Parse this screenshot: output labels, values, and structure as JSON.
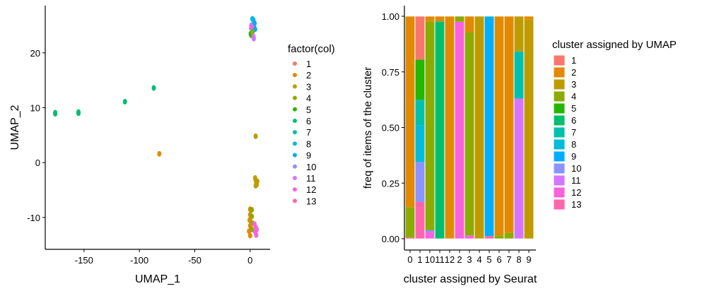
{
  "palette": {
    "1": "#F8766D",
    "2": "#E18A00",
    "3": "#BE9C00",
    "4": "#8CAB00",
    "5": "#24B700",
    "6": "#00BE70",
    "7": "#00C1AB",
    "8": "#00BBDA",
    "9": "#00ACFC",
    "10": "#8B93FF",
    "11": "#D575FE",
    "12": "#F962DD",
    "13": "#FF65AC"
  },
  "chart_data": [
    {
      "type": "scatter",
      "xlabel": "UMAP_1",
      "ylabel": "UMAP_2",
      "xlim": [
        -185,
        18
      ],
      "ylim": [
        -15.8,
        28.6
      ],
      "xticks": [
        -150,
        -100,
        -50,
        0
      ],
      "yticks": [
        -10,
        0,
        10,
        20
      ],
      "grid": false,
      "legend": {
        "title": "factor(col)",
        "position": "right",
        "entries": [
          "1",
          "2",
          "3",
          "4",
          "5",
          "6",
          "7",
          "8",
          "9",
          "10",
          "11",
          "12",
          "13"
        ]
      },
      "points": [
        [
          -176,
          8.9,
          6
        ],
        [
          -176,
          9.1,
          6
        ],
        [
          -155,
          9.0,
          6
        ],
        [
          -155,
          9.2,
          6
        ],
        [
          -113,
          11.1,
          6
        ],
        [
          -87,
          13.6,
          6
        ],
        [
          -82,
          1.6,
          2
        ],
        [
          5,
          4.8,
          3
        ],
        [
          4.5,
          -2.8,
          3
        ],
        [
          5,
          -3.2,
          3
        ],
        [
          5.5,
          -3.6,
          3
        ],
        [
          6,
          -4.0,
          3
        ],
        [
          5,
          -4.2,
          3
        ],
        [
          6.5,
          -3.4,
          3
        ],
        [
          0,
          -8.5,
          2
        ],
        [
          0,
          -9.5,
          2
        ],
        [
          -0.5,
          -10.5,
          2
        ],
        [
          0,
          -11.5,
          2
        ],
        [
          -1,
          -12.5,
          2
        ],
        [
          0,
          -13.3,
          2
        ],
        [
          1,
          -12,
          2
        ],
        [
          0.5,
          -10,
          2
        ],
        [
          1.5,
          -8.6,
          4
        ],
        [
          1.5,
          -9.8,
          4
        ],
        [
          2,
          -11,
          4
        ],
        [
          1.5,
          -12.2,
          4
        ],
        [
          4,
          -11.2,
          12
        ],
        [
          5,
          -11.8,
          12
        ],
        [
          4.5,
          -12.6,
          12
        ],
        [
          5.5,
          -13.2,
          12
        ],
        [
          6,
          -12.2,
          12
        ],
        [
          2,
          26.2,
          8
        ],
        [
          3,
          26,
          8
        ],
        [
          2.5,
          25.2,
          1
        ],
        [
          1,
          25,
          10
        ],
        [
          0.8,
          24.5,
          10
        ],
        [
          3.5,
          24.8,
          9
        ],
        [
          4.5,
          24.3,
          9
        ],
        [
          4,
          25.4,
          9
        ],
        [
          2.5,
          24,
          7
        ],
        [
          0.5,
          23.5,
          5
        ],
        [
          1,
          23.2,
          5
        ],
        [
          2,
          23.8,
          4
        ],
        [
          3,
          23,
          11
        ],
        [
          3.3,
          22.6,
          11
        ],
        [
          1.5,
          24.8,
          12
        ]
      ]
    },
    {
      "type": "bar",
      "stacked": true,
      "xlabel": "cluster assigned by Seurat",
      "ylabel": "freq of items of the cluster",
      "ylim": [
        0,
        1
      ],
      "yticks": [
        "0.00",
        "0.25",
        "0.50",
        "0.75",
        "1.00"
      ],
      "categories": [
        "0",
        "1",
        "10",
        "11",
        "12",
        "2",
        "3",
        "4",
        "5",
        "6",
        "7",
        "8",
        "9"
      ],
      "legend": {
        "title": "cluster assigned by UMAP",
        "position": "right",
        "entries": [
          "1",
          "2",
          "3",
          "4",
          "5",
          "6",
          "7",
          "8",
          "9",
          "10",
          "11",
          "12",
          "13"
        ]
      },
      "stacks": [
        {
          "13": 0.005,
          "4": 0.137,
          "2": 0.858
        },
        {
          "13": 0.165,
          "10": 0.18,
          "8": 0.165,
          "7": 0.115,
          "5": 0.18,
          "1": 0.195
        },
        {
          "12": 0.03,
          "10": 0.008,
          "4": 0.935,
          "3": 0.007,
          "2": 0.02
        },
        {
          "6": 0.977,
          "2": 0.023
        },
        {
          "2": 1.0
        },
        {
          "12": 0.975,
          "4": 0.025
        },
        {
          "12": 0.015,
          "4": 0.912,
          "2": 0.073
        },
        {
          "4": 0.003,
          "3": 0.997
        },
        {
          "13": 0.012,
          "9": 0.985,
          "6": 0.003
        },
        {
          "4": 0.015,
          "2": 0.985
        },
        {
          "4": 0.028,
          "2": 0.972
        },
        {
          "11": 0.63,
          "7": 0.212,
          "3": 0.158
        },
        {
          "3": 0.985,
          "2": 0.015
        }
      ]
    }
  ]
}
